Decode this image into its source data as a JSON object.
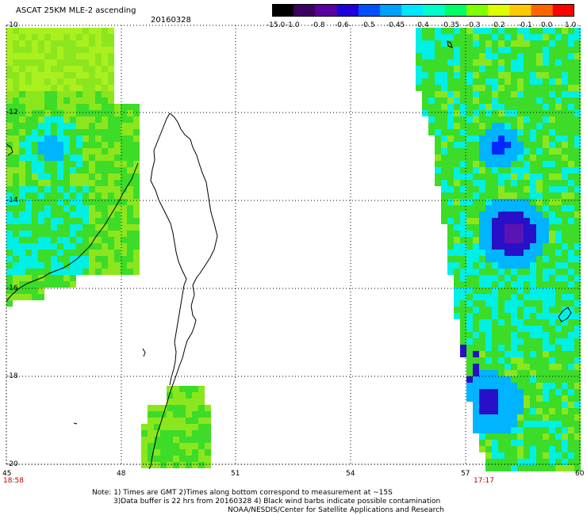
{
  "header": {
    "title": "ASCAT 25KM MLE-2 ascending",
    "date": "20160328"
  },
  "colorbar": {
    "labels": [
      "-15.0",
      "-1.0",
      "-0.8",
      "-0.6",
      "-0.5",
      "-0.45",
      "-0.4",
      "-0.35",
      "-0.3",
      "-0.2",
      "-0.1",
      "0.0",
      "1.0"
    ],
    "colors": [
      "#000000",
      "#3c0064",
      "#5a00a0",
      "#1e00dc",
      "#0050ff",
      "#00a0ff",
      "#00e6ff",
      "#00ffc8",
      "#00ff64",
      "#7dff00",
      "#dcff00",
      "#ffc800",
      "#ff6400",
      "#ff0000"
    ]
  },
  "axes": {
    "lat_labels": [
      "-10",
      "-12",
      "-14",
      "-16",
      "-18",
      "-20"
    ],
    "lon_labels": [
      "45",
      "48",
      "51",
      "54",
      "57",
      "60"
    ]
  },
  "pass_times": {
    "left": "18:58",
    "right": "17:17"
  },
  "notes": {
    "line1": "Note: 1) Times are GMT 2)Times along bottom correspond to measurement at ~15S",
    "line2": "3)Data buffer is 22 hrs from 20160328 4) Black wind barbs indicate possible contamination",
    "line3": "NOAA/NESDIS/Center for Satellite Applications and Research"
  },
  "swath_colors": {
    "green": "#3cdc28",
    "lime": "#8ce61e",
    "yellowgreen": "#aaf01e",
    "cyan": "#00f0e6",
    "skyblue": "#00b4ff",
    "blue": "#0028ff",
    "deepblue": "#2810c8",
    "violet": "#5a14b4"
  }
}
